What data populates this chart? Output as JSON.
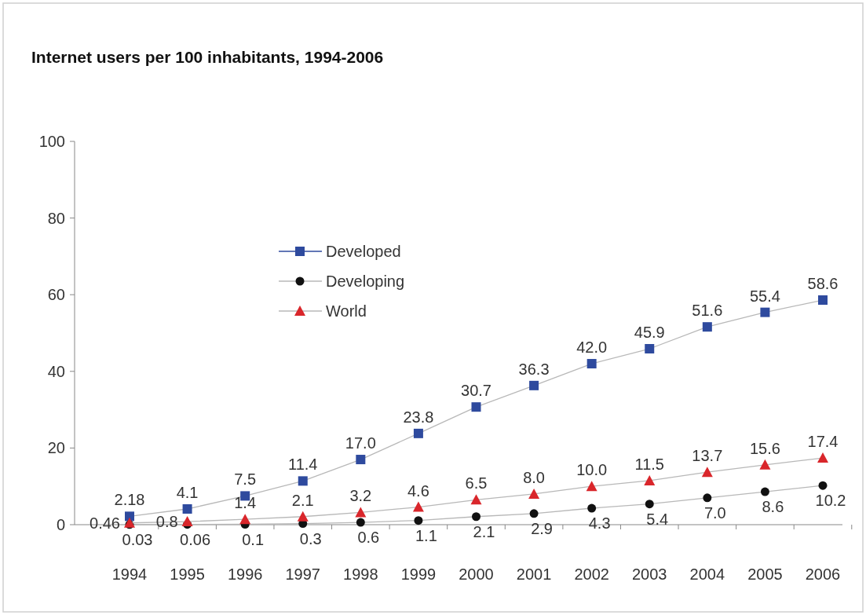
{
  "chart_data": {
    "type": "line",
    "title": "Internet users per 100 inhabitants, 1994-2006",
    "categories": [
      "1994",
      "1995",
      "1996",
      "1997",
      "1998",
      "1999",
      "2000",
      "2001",
      "2002",
      "2003",
      "2004",
      "2005",
      "2006"
    ],
    "series": [
      {
        "name": "Developed",
        "color": "#2e4a9e",
        "marker": "square",
        "values": [
          2.18,
          4.1,
          7.5,
          11.4,
          17.0,
          23.8,
          30.7,
          36.3,
          42.0,
          45.9,
          51.6,
          55.4,
          58.6
        ],
        "value_labels": [
          "2.18",
          "4.1",
          "7.5",
          "11.4",
          "17.0",
          "23.8",
          "30.7",
          "36.3",
          "42.0",
          "45.9",
          "51.6",
          "55.4",
          "58.6"
        ]
      },
      {
        "name": "Developing",
        "color": "#111111",
        "marker": "circle",
        "values": [
          0.03,
          0.06,
          0.1,
          0.3,
          0.6,
          1.1,
          2.1,
          2.9,
          4.3,
          5.4,
          7.0,
          8.6,
          10.2
        ],
        "value_labels": [
          "0.03",
          "0.06",
          "0.1",
          "0.3",
          "0.6",
          "1.1",
          "2.1",
          "2.9",
          "4.3",
          "5.4",
          "7.0",
          "8.6",
          "10.2"
        ]
      },
      {
        "name": "World",
        "color": "#d9262b",
        "marker": "triangle",
        "values": [
          0.46,
          0.8,
          1.4,
          2.1,
          3.2,
          4.6,
          6.5,
          8.0,
          10.0,
          11.5,
          13.7,
          15.6,
          17.4
        ],
        "value_labels": [
          "0.46",
          "0.8",
          "1.4",
          "2.1",
          "3.2",
          "4.6",
          "6.5",
          "8.0",
          "10.0",
          "11.5",
          "13.7",
          "15.6",
          "17.4"
        ]
      }
    ],
    "ylim": [
      0,
      100
    ],
    "yticks": [
      0,
      20,
      40,
      60,
      80,
      100
    ],
    "grid": false,
    "legend": "top left",
    "line_style": "solid"
  }
}
